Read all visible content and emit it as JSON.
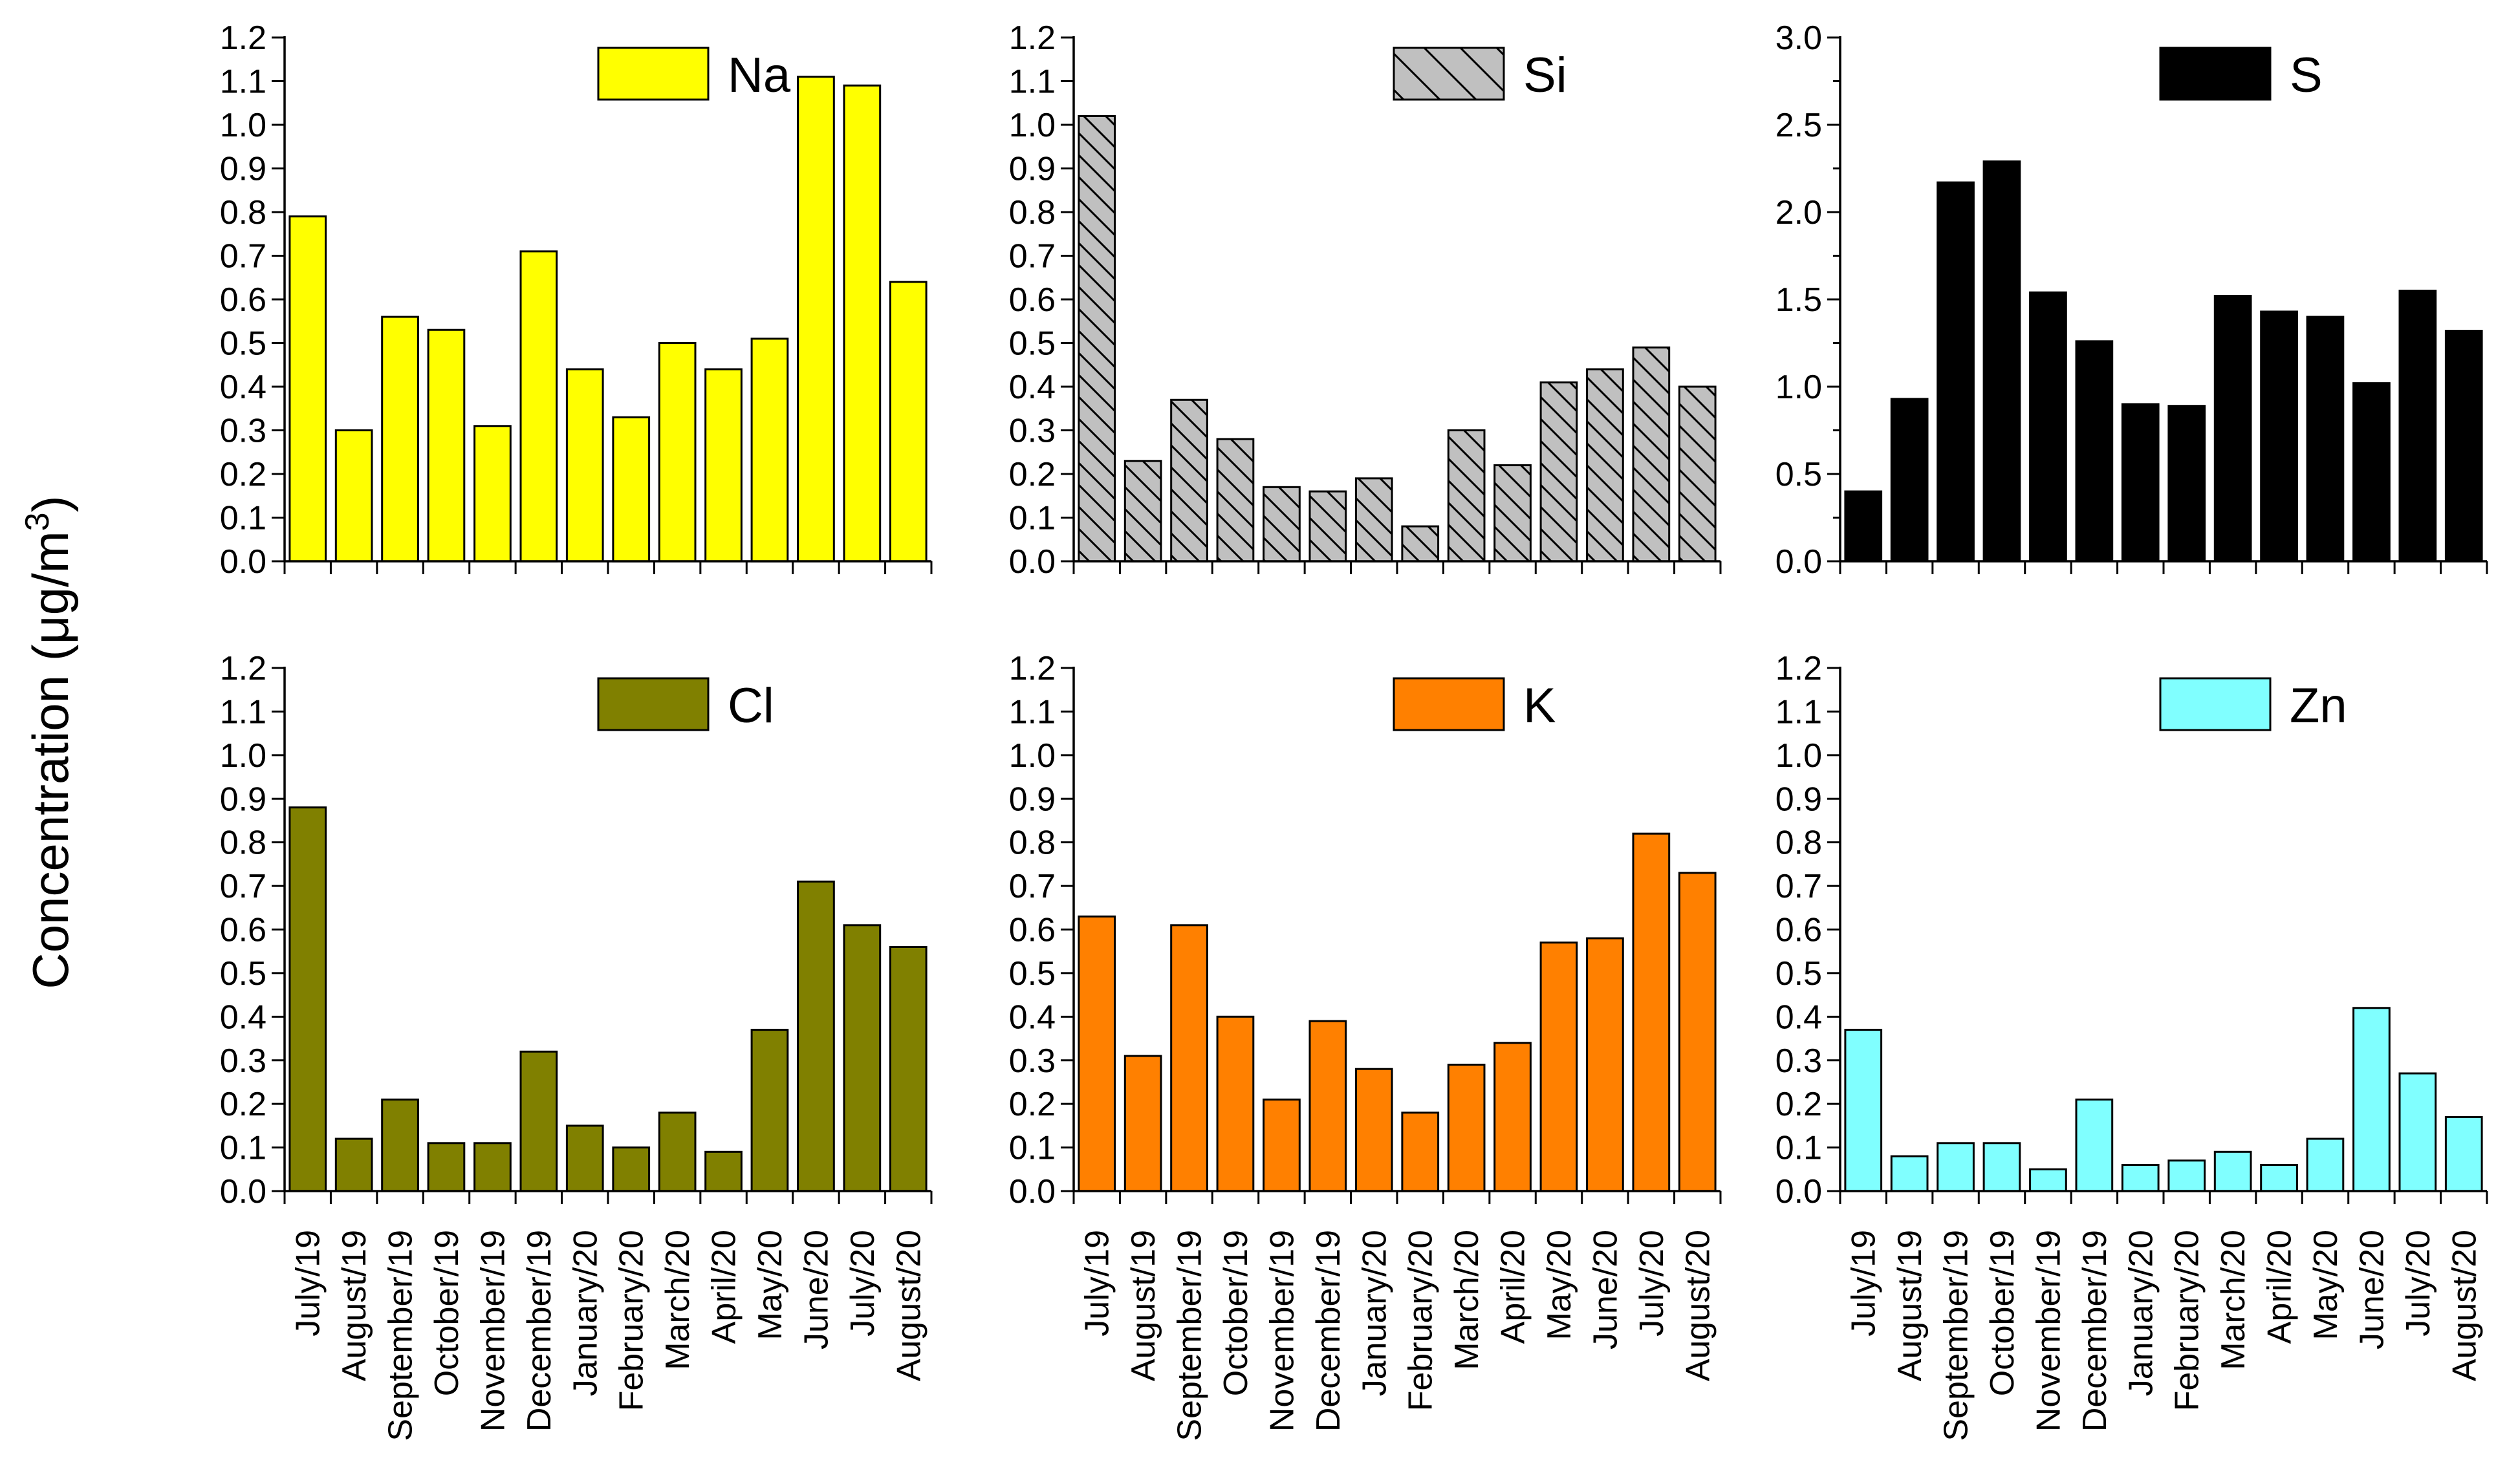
{
  "figure": {
    "ylabel_main": "Concentration (",
    "ylabel_unit_mu": "μ",
    "ylabel_unit_g": "g/m",
    "ylabel_unit_exp": "3",
    "ylabel_close": ")"
  },
  "chart_data": [
    {
      "type": "bar",
      "title": "",
      "legend": "Na",
      "color": "#ffff00",
      "pattern": "none",
      "xlabel": "",
      "ylabel": "Concentration (μg/m3)",
      "ylim": [
        0,
        1.2
      ],
      "yticks": [
        "0.0",
        "0.1",
        "0.2",
        "0.3",
        "0.4",
        "0.5",
        "0.6",
        "0.7",
        "0.8",
        "0.9",
        "1.0",
        "1.1",
        "1.2"
      ],
      "categories": [
        "July/19",
        "August/19",
        "September/19",
        "October/19",
        "November/19",
        "December/19",
        "January/20",
        "February/20",
        "March/20",
        "April/20",
        "May/20",
        "June/20",
        "July/20",
        "August/20"
      ],
      "values": [
        0.79,
        0.3,
        0.56,
        0.53,
        0.31,
        0.71,
        0.44,
        0.33,
        0.5,
        0.44,
        0.51,
        1.11,
        1.09,
        0.64
      ],
      "show_xticklabels": false
    },
    {
      "type": "bar",
      "title": "",
      "legend": "Si",
      "color": "#c0c0c0",
      "pattern": "hatch",
      "xlabel": "",
      "ylabel": "Concentration (μg/m3)",
      "ylim": [
        0,
        1.2
      ],
      "yticks": [
        "0.0",
        "0.1",
        "0.2",
        "0.3",
        "0.4",
        "0.5",
        "0.6",
        "0.7",
        "0.8",
        "0.9",
        "1.0",
        "1.1",
        "1.2"
      ],
      "categories": [
        "July/19",
        "August/19",
        "September/19",
        "October/19",
        "November/19",
        "December/19",
        "January/20",
        "February/20",
        "March/20",
        "April/20",
        "May/20",
        "June/20",
        "July/20",
        "August/20"
      ],
      "values": [
        1.02,
        0.23,
        0.37,
        0.28,
        0.17,
        0.16,
        0.19,
        0.08,
        0.3,
        0.22,
        0.41,
        0.44,
        0.49,
        0.4
      ],
      "show_xticklabels": false
    },
    {
      "type": "bar",
      "title": "",
      "legend": "S",
      "color": "#000000",
      "pattern": "none",
      "xlabel": "",
      "ylabel": "Concentration (μg/m3)",
      "ylim": [
        0,
        3.0
      ],
      "yticks": [
        "0.0",
        "0.5",
        "1.0",
        "1.5",
        "2.0",
        "2.5",
        "3.0"
      ],
      "minor_tick_step": 0.25,
      "categories": [
        "July/19",
        "August/19",
        "September/19",
        "October/19",
        "November/19",
        "December/19",
        "January/20",
        "February/20",
        "March/20",
        "April/20",
        "May/20",
        "June/20",
        "July/20",
        "August/20"
      ],
      "values": [
        0.4,
        0.93,
        2.17,
        2.29,
        1.54,
        1.26,
        0.9,
        0.89,
        1.52,
        1.43,
        1.4,
        1.02,
        1.55,
        1.32
      ],
      "show_xticklabels": false
    },
    {
      "type": "bar",
      "title": "",
      "legend": "Cl",
      "color": "#808000",
      "pattern": "none",
      "xlabel": "",
      "ylabel": "Concentration (μg/m3)",
      "ylim": [
        0,
        1.2
      ],
      "yticks": [
        "0.0",
        "0.1",
        "0.2",
        "0.3",
        "0.4",
        "0.5",
        "0.6",
        "0.7",
        "0.8",
        "0.9",
        "1.0",
        "1.1",
        "1.2"
      ],
      "categories": [
        "July/19",
        "August/19",
        "September/19",
        "October/19",
        "November/19",
        "December/19",
        "January/20",
        "February/20",
        "March/20",
        "April/20",
        "May/20",
        "June/20",
        "July/20",
        "August/20"
      ],
      "values": [
        0.88,
        0.12,
        0.21,
        0.11,
        0.11,
        0.32,
        0.15,
        0.1,
        0.18,
        0.09,
        0.37,
        0.71,
        0.61,
        0.56
      ],
      "show_xticklabels": true
    },
    {
      "type": "bar",
      "title": "",
      "legend": "K",
      "color": "#ff8000",
      "pattern": "none",
      "xlabel": "",
      "ylabel": "Concentration (μg/m3)",
      "ylim": [
        0,
        1.2
      ],
      "yticks": [
        "0.0",
        "0.1",
        "0.2",
        "0.3",
        "0.4",
        "0.5",
        "0.6",
        "0.7",
        "0.8",
        "0.9",
        "1.0",
        "1.1",
        "1.2"
      ],
      "categories": [
        "July/19",
        "August/19",
        "September/19",
        "October/19",
        "November/19",
        "December/19",
        "January/20",
        "February/20",
        "March/20",
        "April/20",
        "May/20",
        "June/20",
        "July/20",
        "August/20"
      ],
      "values": [
        0.63,
        0.31,
        0.61,
        0.4,
        0.21,
        0.39,
        0.28,
        0.18,
        0.29,
        0.34,
        0.57,
        0.58,
        0.82,
        0.73
      ],
      "show_xticklabels": true
    },
    {
      "type": "bar",
      "title": "",
      "legend": "Zn",
      "color": "#80ffff",
      "pattern": "none",
      "xlabel": "",
      "ylabel": "Concentration (μg/m3)",
      "ylim": [
        0,
        1.2
      ],
      "yticks": [
        "0.0",
        "0.1",
        "0.2",
        "0.3",
        "0.4",
        "0.5",
        "0.6",
        "0.7",
        "0.8",
        "0.9",
        "1.0",
        "1.1",
        "1.2"
      ],
      "categories": [
        "July/19",
        "August/19",
        "September/19",
        "October/19",
        "November/19",
        "December/19",
        "January/20",
        "February/20",
        "March/20",
        "April/20",
        "May/20",
        "June/20",
        "July/20",
        "August/20"
      ],
      "values": [
        0.37,
        0.08,
        0.11,
        0.11,
        0.05,
        0.21,
        0.06,
        0.07,
        0.09,
        0.06,
        0.12,
        0.42,
        0.27,
        0.17
      ],
      "show_xticklabels": true
    }
  ]
}
